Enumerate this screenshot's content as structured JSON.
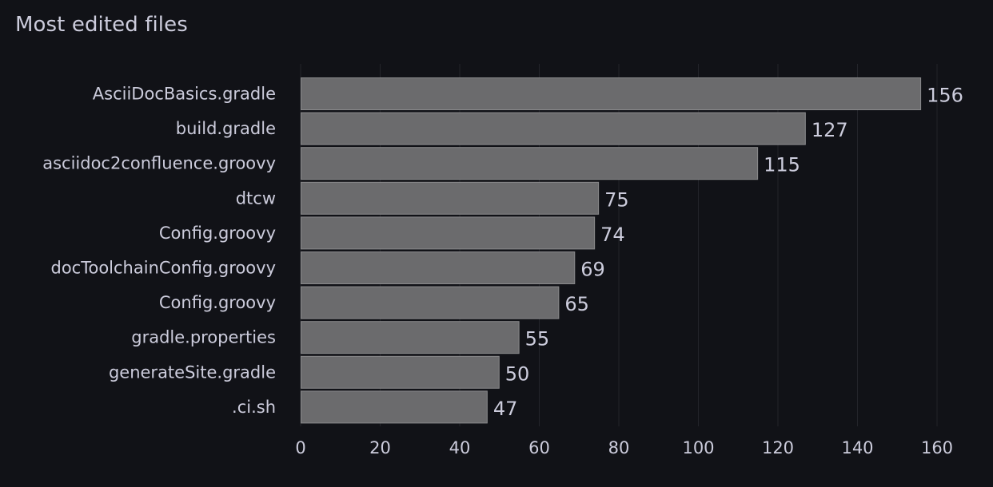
{
  "panel": {
    "title": "Most edited files"
  },
  "colors": {
    "background": "#111217",
    "bar_fill": "#6b6b6d",
    "bar_stroke": "#8a8a8c",
    "grid": "#23242a",
    "text": "#ccccdc"
  },
  "chart_data": {
    "type": "bar",
    "orientation": "horizontal",
    "title": "Most edited files",
    "categories": [
      "AsciiDocBasics.gradle",
      "build.gradle",
      "asciidoc2confluence.groovy",
      "dtcw",
      "Config.groovy",
      "docToolchainConfig.groovy",
      "Config.groovy",
      "gradle.properties",
      "generateSite.gradle",
      ".ci.sh"
    ],
    "values": [
      156,
      127,
      115,
      75,
      74,
      69,
      65,
      55,
      50,
      47
    ],
    "xlabel": "",
    "ylabel": "",
    "xlim": [
      0,
      160
    ],
    "xticks": [
      0,
      20,
      40,
      60,
      80,
      100,
      120,
      140,
      160
    ],
    "grid": true,
    "legend": "none",
    "data_labels": true
  }
}
